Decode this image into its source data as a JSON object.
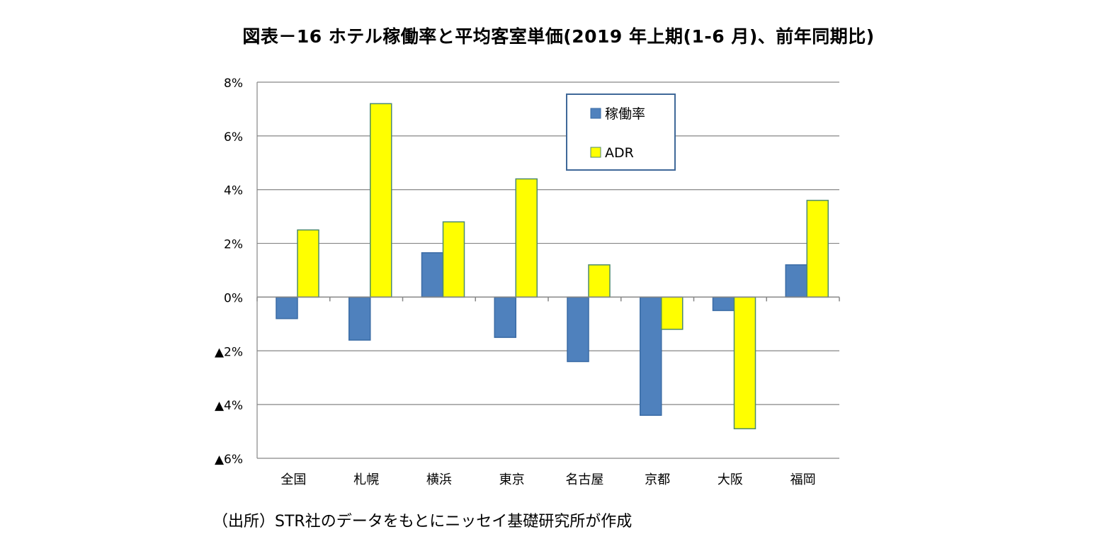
{
  "page": {
    "source_note": "（出所）STR社のデータをもとにニッセイ基礎研究所が作成"
  },
  "chart_data": {
    "type": "bar",
    "title": "図表－16  ホテル稼働率と平均客室単価(2019 年上期(1-6 月)、前年同期比)",
    "xlabel": "",
    "ylabel": "",
    "categories": [
      "全国",
      "札幌",
      "横浜",
      "東京",
      "名古屋",
      "京都",
      "大阪",
      "福岡"
    ],
    "series": [
      {
        "name": "稼働率",
        "color": "#4f81bd",
        "values": [
          -0.8,
          -1.6,
          1.65,
          -1.5,
          -2.4,
          -4.4,
          -0.5,
          1.2
        ]
      },
      {
        "name": "ADR",
        "color": "#ffff00",
        "values": [
          2.5,
          7.2,
          2.8,
          4.4,
          1.2,
          -1.2,
          -4.9,
          3.6
        ]
      }
    ],
    "ylim": [
      -6,
      8
    ],
    "yticks": [
      8,
      6,
      4,
      2,
      0,
      -2,
      -4,
      -6
    ],
    "ytick_labels": [
      "8%",
      "6%",
      "4%",
      "2%",
      "0%",
      "▲2%",
      "▲4%",
      "▲6%"
    ],
    "grid": true,
    "legend_position": "top-right"
  }
}
